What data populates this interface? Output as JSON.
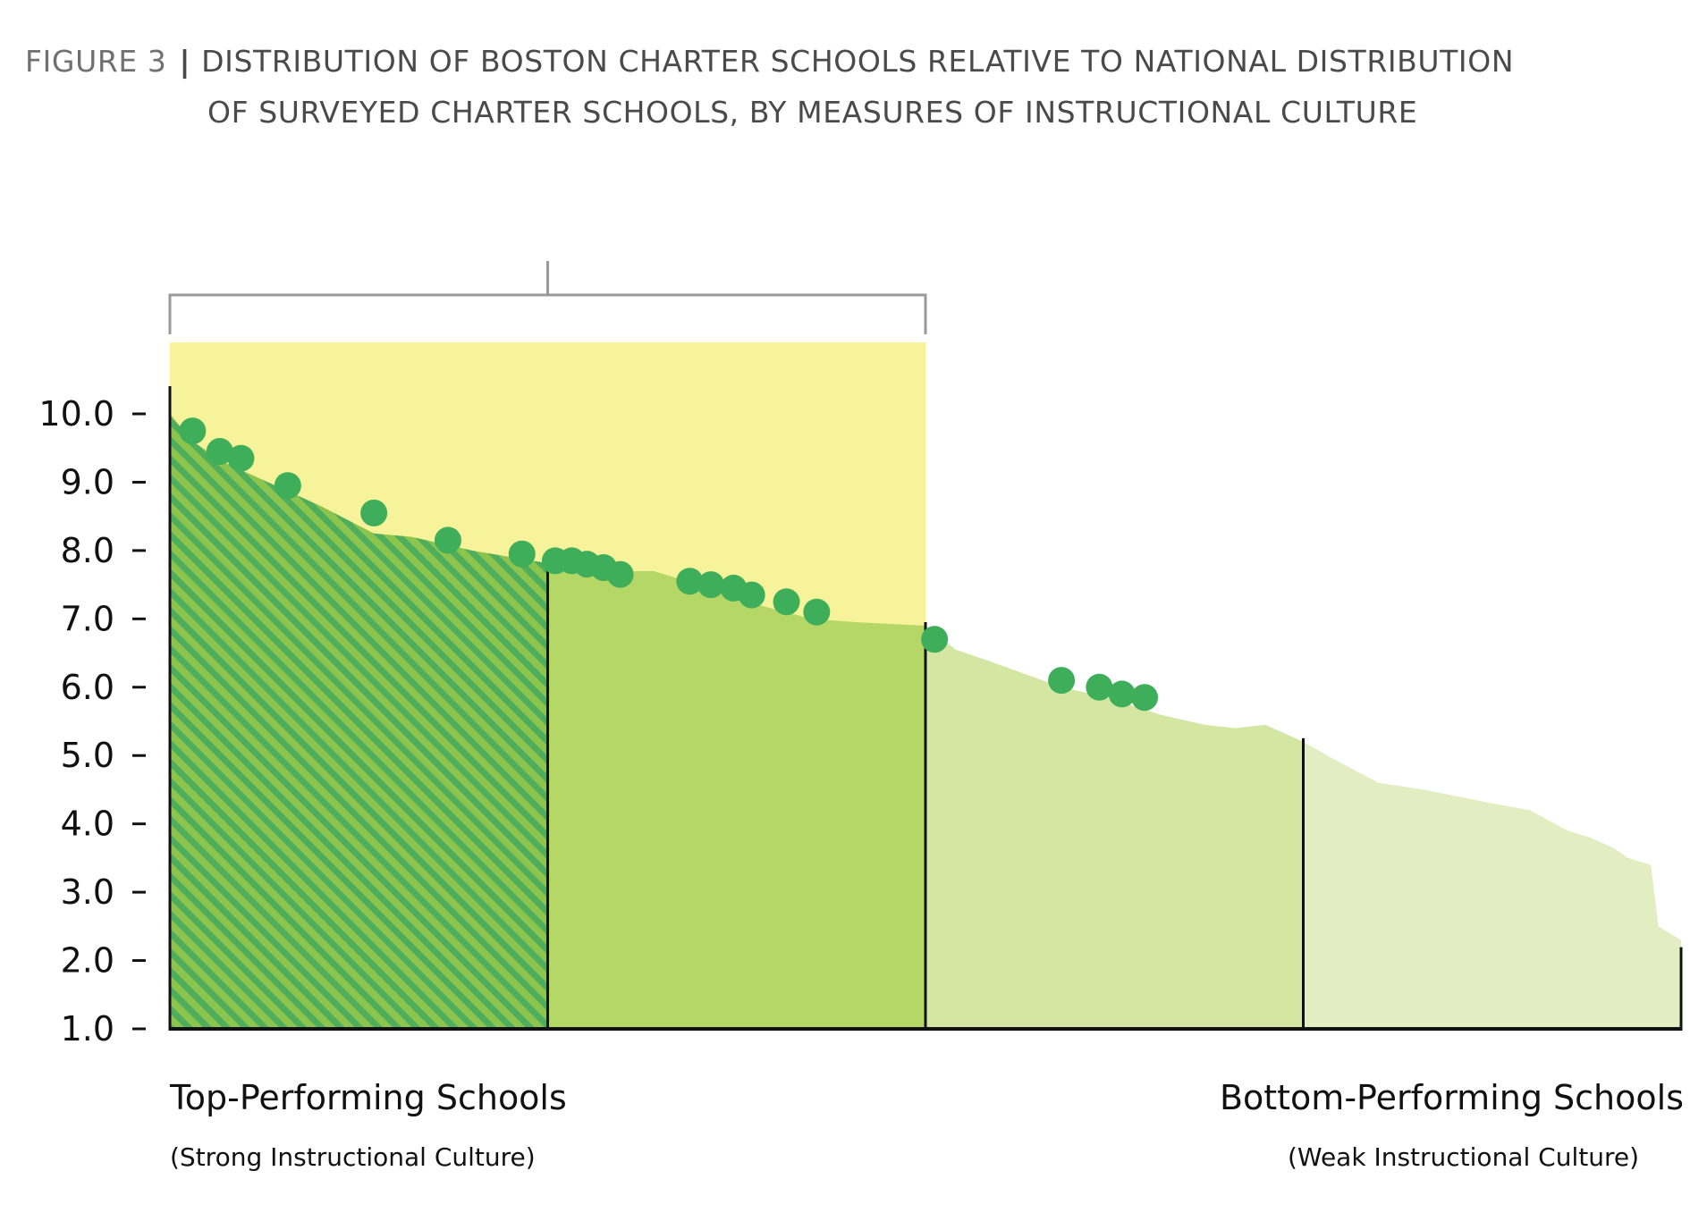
{
  "title": {
    "figure": "FIGURE 3",
    "line1": "DISTRIBUTION OF BOSTON CHARTER SCHOOLS RELATIVE TO NATIONAL DISTRIBUTION",
    "line2": "OF SURVEYED CHARTER SCHOOLS, BY MEASURES OF INSTRUCTIONAL CULTURE"
  },
  "colors": {
    "highlight": "#f7f39a",
    "q1_green": "#8cc44e",
    "q1_hatch": "#4fae5c",
    "q2_green": "#b5d766",
    "q3_green": "#d3e6a2",
    "q4_green": "#e2eec2",
    "boston_dot": "#3fae5a",
    "axis": "#111111",
    "bracket": "#999999"
  },
  "chart_data": {
    "type": "area",
    "ylim": [
      1.0,
      10.0
    ],
    "yticks": [
      "10.0",
      "9.0",
      "8.0",
      "7.0",
      "6.0",
      "5.0",
      "4.0",
      "3.0",
      "2.0",
      "1.0"
    ],
    "ytick_values": [
      10,
      9,
      8,
      7,
      6,
      5,
      4,
      3,
      2,
      1
    ],
    "x_range": [
      0,
      100
    ],
    "x_left_label": "Top-Performing Schools",
    "x_left_sublabel": "(Strong Instructional Culture)",
    "x_right_label": "Bottom-Performing Schools",
    "x_right_sublabel": "(Weak Instructional Culture)",
    "quartile_boundaries": [
      25,
      50,
      75
    ],
    "highlight_range": [
      0,
      50
    ],
    "series": [
      {
        "values_x": [
          0,
          1.5,
          3.5,
          6.5,
          10,
          13.5,
          16,
          20,
          24,
          27,
          29.5,
          32,
          35,
          39,
          42.5,
          45.5,
          50,
          52,
          54,
          56.5,
          59,
          62,
          65.5,
          68.5,
          70.5,
          72.5,
          74,
          75,
          77,
          80,
          83,
          87.5,
          90,
          92.5,
          94,
          95.5,
          96.5,
          98,
          98.5,
          100
        ],
        "values_y": [
          10.0,
          9.6,
          9.3,
          9.0,
          8.65,
          8.25,
          8.2,
          8.0,
          7.85,
          7.75,
          7.7,
          7.7,
          7.5,
          7.2,
          7.0,
          6.95,
          6.9,
          6.55,
          6.4,
          6.2,
          6.0,
          5.85,
          5.6,
          5.45,
          5.4,
          5.45,
          5.3,
          5.2,
          4.95,
          4.6,
          4.5,
          4.3,
          4.2,
          3.9,
          3.8,
          3.65,
          3.5,
          3.4,
          2.5,
          2.3
        ]
      },
      {
        "name": "Boston",
        "x": [
          1.5,
          3.3,
          4.7,
          7.8,
          13.5,
          18.4,
          23.3,
          25.5,
          26.6,
          27.6,
          28.7,
          29.8,
          34.4,
          35.8,
          37.3,
          38.5,
          40.8,
          42.8,
          50.6,
          59.0,
          61.5,
          63.0,
          64.5
        ],
        "y": [
          9.75,
          9.45,
          9.35,
          8.95,
          8.55,
          8.15,
          7.95,
          7.85,
          7.85,
          7.8,
          7.75,
          7.65,
          7.55,
          7.5,
          7.45,
          7.35,
          7.25,
          7.1,
          6.7,
          6.1,
          6.0,
          5.9,
          5.85
        ]
      }
    ]
  }
}
